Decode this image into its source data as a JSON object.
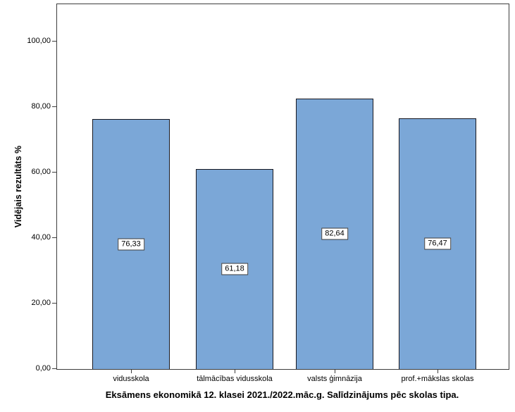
{
  "chart_data": {
    "type": "bar",
    "title": "Eksāmens ekonomikā 12. klasei 2021./2022.māc.g. Salīdzinājums pēc skolas tipa.",
    "ylabel": "Vidējais rezultāts %",
    "categories": [
      "vidusskola",
      "tālmācības vidusskola",
      "valsts ģimnāzija",
      "prof.+mākslas skolas"
    ],
    "values": [
      76.33,
      61.18,
      82.64,
      76.47
    ],
    "value_labels": [
      "76,33",
      "61,18",
      "82,64",
      "76,47"
    ],
    "y_ticks": [
      {
        "value": 0,
        "label": "0,00"
      },
      {
        "value": 20,
        "label": "20,00"
      },
      {
        "value": 40,
        "label": "40,00"
      },
      {
        "value": 60,
        "label": "60,00"
      },
      {
        "value": 80,
        "label": "80,00"
      },
      {
        "value": 100,
        "label": "100,00"
      }
    ],
    "ylim": [
      0,
      111.4
    ],
    "grid": false,
    "legend": false,
    "bar_color": "#7BA7D7",
    "bar_border_color": "#181820",
    "axis_color": "#3d3d3d",
    "decimal_separator": ","
  }
}
